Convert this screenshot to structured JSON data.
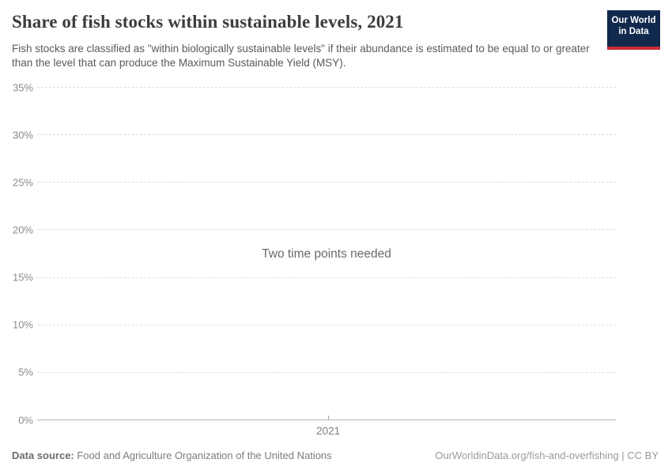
{
  "header": {
    "title": "Share of fish stocks within sustainable levels, 2021",
    "subtitle": "Fish stocks are classified as \"within biologically sustainable levels\" if their abundance is estimated to be equal to or greater than the level that can produce the Maximum Sustainable Yield (MSY).",
    "logo": {
      "line1": "Our World",
      "line2": "in Data",
      "bg_color": "#12294e",
      "accent_color": "#cc2a36"
    }
  },
  "chart_data": {
    "type": "line",
    "title": "Share of fish stocks within sustainable levels, 2021",
    "series": [],
    "message": "Two time points needed",
    "ylim": [
      0,
      35
    ],
    "y_ticks": [
      "0%",
      "5%",
      "10%",
      "15%",
      "20%",
      "25%",
      "30%",
      "35%"
    ],
    "x_ticks": [
      {
        "label": "2021",
        "frac": 0.503
      }
    ],
    "grid": "horizontal-dashed",
    "legend": "none",
    "colors": {
      "gridline": "#dcdcdc",
      "axis_line": "#b3b3b3",
      "tick_label": "#8b8b8b",
      "message_text": "#6b6b6b"
    }
  },
  "footer": {
    "source_label": "Data source:",
    "source_text": " Food and Agriculture Organization of the United Nations",
    "credit": "OurWorldinData.org/fish-and-overfishing | CC BY"
  }
}
